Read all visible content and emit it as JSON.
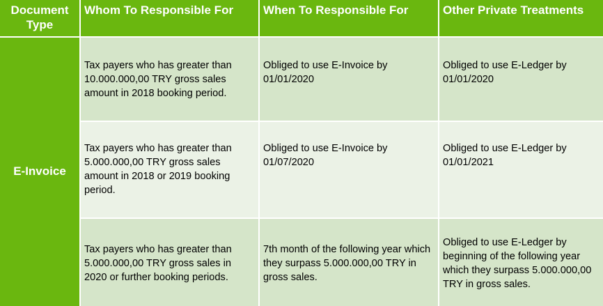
{
  "header": {
    "document_type": "Document Type",
    "whom": "Whom To Responsible For",
    "when": "When To Responsible For",
    "other": "Other Private Treatments"
  },
  "document_type_value": "E-Invoice",
  "rows": [
    {
      "whom": "Tax payers who has greater than 10.000.000,00 TRY gross sales amount in 2018 booking period.",
      "when": "Obliged to use E-Invoice by 01/01/2020",
      "other": "Obliged to use E-Ledger by 01/01/2020"
    },
    {
      "whom": "Tax payers who has greater than 5.000.000,00 TRY gross sales amount in 2018 or 2019 booking period.",
      "when": "Obliged to use E-Invoice by 01/07/2020",
      "other": "Obliged to use E-Ledger by 01/01/2021"
    },
    {
      "whom": "Tax payers who has greater than 5.000.000,00 TRY gross sales in 2020 or further booking periods.",
      "when": "7th month of the following year which they surpass 5.000.000,00 TRY in gross sales.",
      "other": "Obliged to use E-Ledger by beginning of the following year which they surpass 5.000.000,00 TRY in gross sales."
    }
  ]
}
